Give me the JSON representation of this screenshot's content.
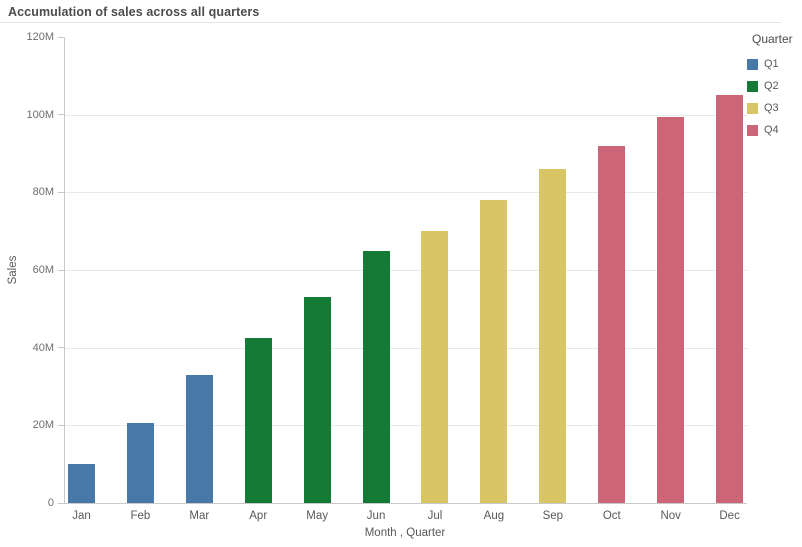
{
  "header": {
    "title": "Accumulation of sales across all quarters"
  },
  "chart_data": {
    "type": "bar",
    "title": "Accumulation of sales across all quarters",
    "xlabel": "Month , Quarter",
    "ylabel": "Sales",
    "unit": "M",
    "ylim_m": [
      0,
      120
    ],
    "y_tick_step_m": 20,
    "y_tick_labels": [
      "0",
      "20M",
      "40M",
      "60M",
      "80M",
      "100M",
      "120M"
    ],
    "grid": "horizontal",
    "categories": [
      "Jan",
      "Feb",
      "Mar",
      "Apr",
      "May",
      "Jun",
      "Jul",
      "Aug",
      "Sep",
      "Oct",
      "Nov",
      "Dec"
    ],
    "bars": [
      {
        "month": "Jan",
        "quarter": "Q1",
        "value_m": 10
      },
      {
        "month": "Feb",
        "quarter": "Q1",
        "value_m": 20.5
      },
      {
        "month": "Mar",
        "quarter": "Q1",
        "value_m": 33
      },
      {
        "month": "Apr",
        "quarter": "Q2",
        "value_m": 42.5
      },
      {
        "month": "May",
        "quarter": "Q2",
        "value_m": 53
      },
      {
        "month": "Jun",
        "quarter": "Q2",
        "value_m": 65
      },
      {
        "month": "Jul",
        "quarter": "Q3",
        "value_m": 70
      },
      {
        "month": "Aug",
        "quarter": "Q3",
        "value_m": 78
      },
      {
        "month": "Sep",
        "quarter": "Q3",
        "value_m": 86
      },
      {
        "month": "Oct",
        "quarter": "Q4",
        "value_m": 92
      },
      {
        "month": "Nov",
        "quarter": "Q4",
        "value_m": 99.5
      },
      {
        "month": "Dec",
        "quarter": "Q4",
        "value_m": 105
      }
    ],
    "quarter_colors": {
      "Q1": "#4878a8",
      "Q2": "#147a36",
      "Q3": "#d8c566",
      "Q4": "#cc6577"
    },
    "legend": {
      "position": "top-right",
      "title": "Quarter",
      "items": [
        {
          "label": "Q1",
          "color": "#4878a8"
        },
        {
          "label": "Q2",
          "color": "#147a36"
        },
        {
          "label": "Q3",
          "color": "#d8c566"
        },
        {
          "label": "Q4",
          "color": "#cc6577"
        }
      ]
    }
  }
}
